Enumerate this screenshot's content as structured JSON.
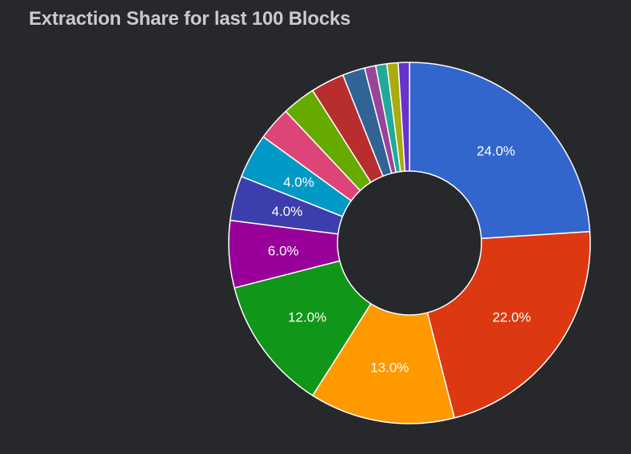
{
  "header": {
    "title": "Extraction Share for last 100 Blocks"
  },
  "colors": {
    "background": "#26282c",
    "title_text": "#c9cacb",
    "slice_border": "#ffffff",
    "label_text": "#ffffff"
  },
  "chart_data": {
    "type": "pie",
    "donut": true,
    "title": "Extraction Share for last 100 Blocks",
    "values": [
      24,
      22,
      13,
      12,
      6,
      4,
      4,
      3,
      3,
      3,
      2,
      1,
      1,
      1,
      1
    ],
    "labels": [
      "24.0%",
      "22.0%",
      "13.0%",
      "12.0%",
      "6.0%",
      "4.0%",
      "4.0%",
      "",
      "",
      "",
      "",
      "",
      "",
      "",
      ""
    ],
    "colors": [
      "#3366cc",
      "#dc3912",
      "#ff9900",
      "#109618",
      "#990099",
      "#3b3eac",
      "#0099c6",
      "#dd4477",
      "#66aa00",
      "#b82e2e",
      "#316395",
      "#994499",
      "#22aa99",
      "#aaaa11",
      "#6633cc"
    ],
    "legend": "none"
  }
}
